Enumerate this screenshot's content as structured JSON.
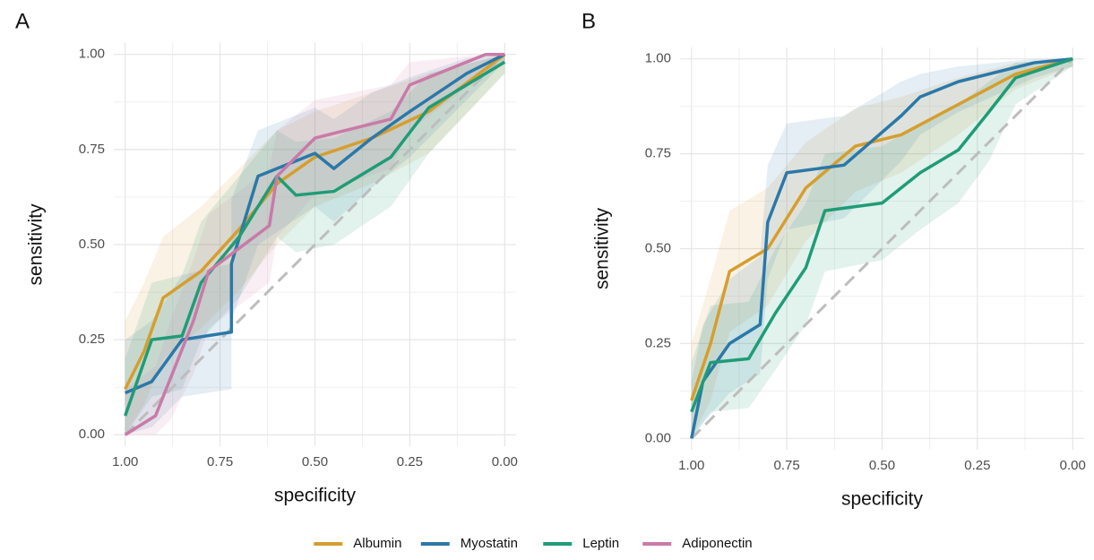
{
  "chart_data": [
    {
      "type": "line",
      "panel_label": "A",
      "x_label": "specificity",
      "y_label": "sensitivity",
      "xlim": [
        1.03,
        -0.03
      ],
      "ylim": [
        -0.03,
        1.03
      ],
      "xticks": [
        {
          "value": 1,
          "label": "1.00"
        },
        {
          "value": 0.75,
          "label": "0.75"
        },
        {
          "value": 0.5,
          "label": "0.50"
        },
        {
          "value": 0.25,
          "label": "0.25"
        },
        {
          "value": 0,
          "label": "0.00"
        }
      ],
      "yticks": [
        {
          "value": 0,
          "label": "0.00"
        },
        {
          "value": 0.25,
          "label": "0.25"
        },
        {
          "value": 0.5,
          "label": "0.50"
        },
        {
          "value": 0.75,
          "label": "0.75"
        },
        {
          "value": 1,
          "label": "1.00"
        }
      ],
      "grid": true,
      "reference_line": true,
      "series": [
        {
          "name": "Albumin",
          "color": "#d69e2e",
          "x": [
            1,
            0.95,
            0.9,
            0.8,
            0.7,
            0.6,
            0.5,
            0.35,
            0.2,
            0
          ],
          "values": [
            0.12,
            0.22,
            0.36,
            0.43,
            0.54,
            0.66,
            0.73,
            0.78,
            0.85,
            1.0
          ],
          "ci_lower": [
            0,
            0.08,
            0.2,
            0.28,
            0.38,
            0.5,
            0.6,
            0.66,
            0.74,
            0.95
          ],
          "ci_upper": [
            0.3,
            0.4,
            0.52,
            0.6,
            0.7,
            0.8,
            0.85,
            0.9,
            0.95,
            1
          ]
        },
        {
          "name": "Myostatin",
          "color": "#2b78a8",
          "x": [
            1,
            0.93,
            0.85,
            0.72,
            0.72,
            0.65,
            0.5,
            0.45,
            0.35,
            0.25,
            0.1,
            0
          ],
          "values": [
            0.11,
            0.14,
            0.25,
            0.27,
            0.45,
            0.68,
            0.74,
            0.7,
            0.78,
            0.85,
            0.95,
            1
          ],
          "ci_lower": [
            0,
            0.02,
            0.1,
            0.12,
            0.3,
            0.5,
            0.6,
            0.56,
            0.65,
            0.73,
            0.88,
            0.98
          ],
          "ci_upper": [
            0.25,
            0.3,
            0.42,
            0.45,
            0.62,
            0.8,
            0.86,
            0.83,
            0.9,
            0.94,
            0.99,
            1
          ]
        },
        {
          "name": "Leptin",
          "color": "#1f9c77",
          "x": [
            1,
            0.93,
            0.85,
            0.8,
            0.7,
            0.6,
            0.55,
            0.45,
            0.3,
            0.2,
            0
          ],
          "values": [
            0.05,
            0.25,
            0.26,
            0.4,
            0.52,
            0.68,
            0.63,
            0.64,
            0.73,
            0.86,
            0.98
          ],
          "ci_lower": [
            0,
            0.1,
            0.12,
            0.25,
            0.36,
            0.52,
            0.48,
            0.5,
            0.6,
            0.74,
            0.95
          ],
          "ci_upper": [
            0.2,
            0.4,
            0.42,
            0.56,
            0.68,
            0.8,
            0.77,
            0.78,
            0.85,
            0.95,
            1
          ]
        },
        {
          "name": "Adiponectin",
          "color": "#c97aa8",
          "x": [
            1,
            0.92,
            0.88,
            0.82,
            0.78,
            0.62,
            0.6,
            0.5,
            0.3,
            0.25,
            0.05,
            0
          ],
          "values": [
            0,
            0.05,
            0.15,
            0.3,
            0.43,
            0.55,
            0.68,
            0.78,
            0.83,
            0.92,
            1,
            1
          ],
          "ci_lower": [
            0,
            0,
            0.04,
            0.16,
            0.28,
            0.4,
            0.52,
            0.63,
            0.7,
            0.8,
            0.95,
            0.98
          ],
          "ci_upper": [
            0.12,
            0.18,
            0.3,
            0.46,
            0.58,
            0.7,
            0.8,
            0.88,
            0.92,
            0.98,
            1,
            1
          ]
        }
      ]
    },
    {
      "type": "line",
      "panel_label": "B",
      "x_label": "specificity",
      "y_label": "sensitivity",
      "xlim": [
        1.03,
        -0.03
      ],
      "ylim": [
        -0.03,
        1.03
      ],
      "xticks": [
        {
          "value": 1,
          "label": "1.00"
        },
        {
          "value": 0.75,
          "label": "0.75"
        },
        {
          "value": 0.5,
          "label": "0.50"
        },
        {
          "value": 0.25,
          "label": "0.25"
        },
        {
          "value": 0,
          "label": "0.00"
        }
      ],
      "yticks": [
        {
          "value": 0,
          "label": "0.00"
        },
        {
          "value": 0.25,
          "label": "0.25"
        },
        {
          "value": 0.5,
          "label": "0.50"
        },
        {
          "value": 0.75,
          "label": "0.75"
        },
        {
          "value": 1,
          "label": "1.00"
        }
      ],
      "grid": true,
      "reference_line": true,
      "series": [
        {
          "name": "Albumin",
          "color": "#d69e2e",
          "x": [
            1,
            0.95,
            0.9,
            0.8,
            0.7,
            0.57,
            0.45,
            0.3,
            0.15,
            0
          ],
          "values": [
            0.1,
            0.25,
            0.44,
            0.5,
            0.66,
            0.77,
            0.8,
            0.88,
            0.96,
            1
          ],
          "ci_lower": [
            0,
            0.1,
            0.28,
            0.35,
            0.52,
            0.65,
            0.7,
            0.8,
            0.92,
            0.98
          ],
          "ci_upper": [
            0.25,
            0.42,
            0.6,
            0.66,
            0.78,
            0.87,
            0.9,
            0.95,
            0.99,
            1
          ]
        },
        {
          "name": "Myostatin",
          "color": "#2b78a8",
          "x": [
            1,
            0.97,
            0.9,
            0.82,
            0.8,
            0.75,
            0.6,
            0.45,
            0.4,
            0.3,
            0.1,
            0
          ],
          "values": [
            0,
            0.15,
            0.25,
            0.3,
            0.57,
            0.7,
            0.72,
            0.85,
            0.9,
            0.94,
            0.99,
            1
          ],
          "ci_lower": [
            0,
            0.04,
            0.12,
            0.17,
            0.42,
            0.55,
            0.58,
            0.73,
            0.8,
            0.86,
            0.95,
            0.98
          ],
          "ci_upper": [
            0.15,
            0.3,
            0.42,
            0.48,
            0.72,
            0.83,
            0.85,
            0.94,
            0.96,
            0.98,
            1,
            1
          ]
        },
        {
          "name": "Leptin",
          "color": "#1f9c77",
          "x": [
            1,
            0.95,
            0.85,
            0.78,
            0.7,
            0.65,
            0.5,
            0.4,
            0.3,
            0.22,
            0.15,
            0
          ],
          "values": [
            0.07,
            0.2,
            0.21,
            0.33,
            0.45,
            0.6,
            0.62,
            0.7,
            0.76,
            0.86,
            0.95,
            1
          ],
          "ci_lower": [
            0,
            0.07,
            0.08,
            0.18,
            0.3,
            0.44,
            0.47,
            0.55,
            0.62,
            0.73,
            0.88,
            0.98
          ],
          "ci_upper": [
            0.2,
            0.35,
            0.36,
            0.5,
            0.62,
            0.75,
            0.77,
            0.83,
            0.88,
            0.94,
            0.99,
            1
          ]
        }
      ]
    }
  ]
}
